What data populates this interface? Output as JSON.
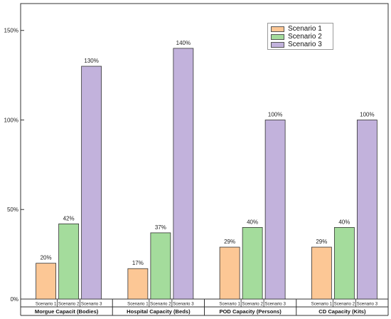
{
  "chart_data": {
    "type": "bar",
    "ylim": [
      0,
      1.65
    ],
    "yticks": [
      {
        "value": 0,
        "label": "0%"
      },
      {
        "value": 0.5,
        "label": "50%"
      },
      {
        "value": 1.0,
        "label": "100%"
      },
      {
        "value": 1.5,
        "label": "150%"
      }
    ],
    "grid": false,
    "legend": "top-right",
    "groups": [
      {
        "label": "Morgue Capacit (Bodies)",
        "bars": [
          {
            "label": "Scenario 1",
            "value": 0.2,
            "data_label": "20%"
          },
          {
            "label": "Scenario 2",
            "value": 0.42,
            "data_label": "42%"
          },
          {
            "label": "Scenario 3",
            "value": 1.3,
            "data_label": "130%"
          }
        ]
      },
      {
        "label": "Hospital Capacity (Beds)",
        "bars": [
          {
            "label": "Scenario 1",
            "value": 0.17,
            "data_label": "17%"
          },
          {
            "label": "Scenario 2",
            "value": 0.37,
            "data_label": "37%"
          },
          {
            "label": "Scenario 3",
            "value": 1.4,
            "data_label": "140%"
          }
        ]
      },
      {
        "label": "POD Capacity (Persons)",
        "bars": [
          {
            "label": "Scenario 1",
            "value": 0.29,
            "data_label": "29%"
          },
          {
            "label": "Scenario 2",
            "value": 0.4,
            "data_label": "40%"
          },
          {
            "label": "Scenario 3",
            "value": 1.0,
            "data_label": "100%"
          }
        ]
      },
      {
        "label": "CD Capacity (Kits)",
        "bars": [
          {
            "label": "Scenario 1",
            "value": 0.29,
            "data_label": "29%"
          },
          {
            "label": "Scenario 2",
            "value": 0.4,
            "data_label": "40%"
          },
          {
            "label": "Scenario 3",
            "value": 1.0,
            "data_label": "100%"
          }
        ]
      }
    ],
    "series": [
      {
        "name": "Scenario 1",
        "color": "#fcc795"
      },
      {
        "name": "Scenario 2",
        "color": "#a4dc9c"
      },
      {
        "name": "Scenario 3",
        "color": "#c2b2dc"
      }
    ]
  }
}
